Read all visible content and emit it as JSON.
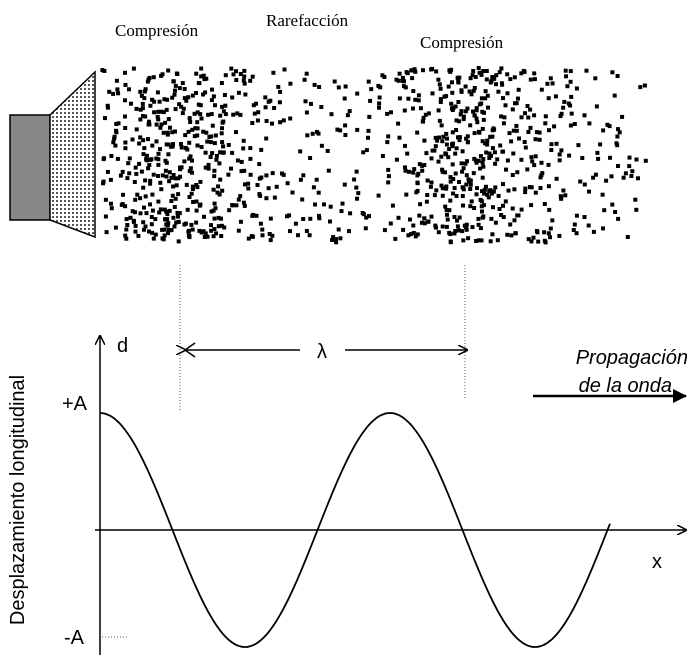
{
  "labels": {
    "compression_left": "Compresión",
    "rarefaction": "Rarefacción",
    "compression_right": "Compresión"
  },
  "graph": {
    "y_axis_label": "d",
    "x_axis_label": "x",
    "wavelength": "λ",
    "amplitude_top": "+A",
    "amplitude_bottom": "-A",
    "vertical_title": "Desplazamiento longitudinal",
    "propagation": [
      "Propagación",
      "de la onda"
    ]
  }
}
